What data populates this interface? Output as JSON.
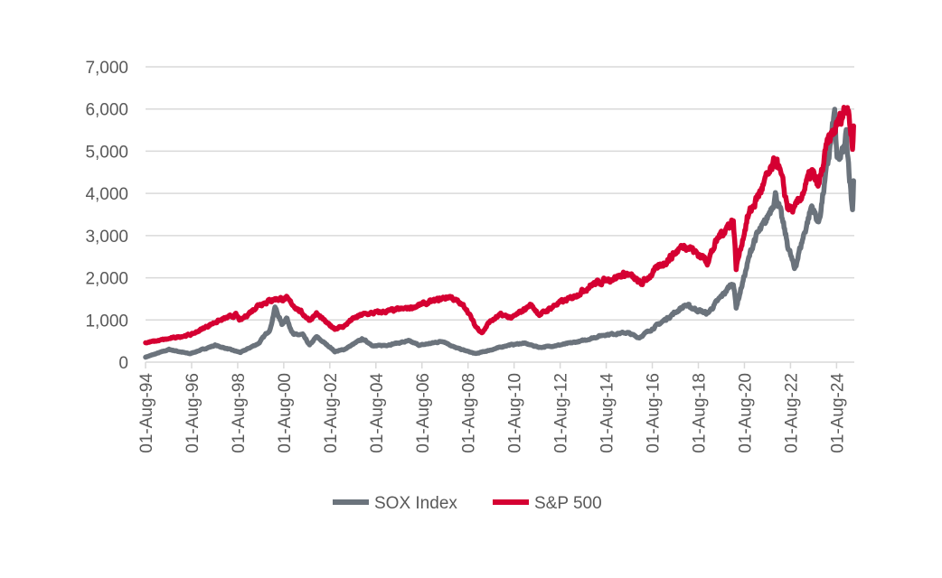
{
  "chart_data": {
    "type": "line",
    "title": "",
    "xlabel": "",
    "ylabel": "",
    "ylim": [
      0,
      7000
    ],
    "yticks": [
      0,
      1000,
      2000,
      3000,
      4000,
      5000,
      6000,
      7000
    ],
    "ytick_labels": [
      "0",
      "1,000",
      "2,000",
      "3,000",
      "4,000",
      "5,000",
      "6,000",
      "7,000"
    ],
    "xlim": [
      1994.58,
      2025.35
    ],
    "xticks": [
      1994.58,
      1996.58,
      1998.58,
      2000.58,
      2002.58,
      2004.58,
      2006.58,
      2008.58,
      2010.58,
      2012.58,
      2014.58,
      2016.58,
      2018.58,
      2020.58,
      2022.58,
      2024.58
    ],
    "xtick_labels": [
      "01-Aug-94",
      "01-Aug-96",
      "01-Aug-98",
      "01-Aug-00",
      "01-Aug-02",
      "01-Aug-04",
      "01-Aug-06",
      "01-Aug-08",
      "01-Aug-10",
      "01-Aug-12",
      "01-Aug-14",
      "01-Aug-16",
      "01-Aug-18",
      "01-Aug-20",
      "01-Aug-22",
      "01-Aug-24"
    ],
    "grid": true,
    "legend_position": "bottom",
    "series": [
      {
        "name": "SOX Index",
        "color": "#6b737c",
        "x": [
          1994.58,
          1995.6,
          1996.5,
          1997.6,
          1998.7,
          1999.5,
          2000.0,
          2000.2,
          2000.5,
          2000.7,
          2001.0,
          2001.4,
          2001.7,
          2002.0,
          2002.6,
          2002.8,
          2003.2,
          2004.0,
          2004.5,
          2005.0,
          2006.0,
          2006.5,
          2007.5,
          2008.0,
          2008.9,
          2009.5,
          2010.3,
          2011.0,
          2011.7,
          2012.5,
          2013.5,
          2014.5,
          2015.5,
          2016.0,
          2017.0,
          2018.0,
          2018.97,
          2019.5,
          2020.1,
          2020.22,
          2020.7,
          2021.0,
          2021.5,
          2021.95,
          2022.45,
          2022.75,
          2023.5,
          2023.8,
          2024.2,
          2024.5,
          2024.6,
          2024.9,
          2025.0,
          2025.27,
          2025.32
        ],
        "values": [
          120,
          300,
          200,
          400,
          230,
          450,
          800,
          1300,
          900,
          1050,
          650,
          650,
          400,
          600,
          350,
          250,
          300,
          550,
          380,
          400,
          500,
          400,
          500,
          350,
          200,
          280,
          400,
          450,
          350,
          400,
          500,
          650,
          700,
          580,
          950,
          1350,
          1150,
          1500,
          1900,
          1300,
          2300,
          2900,
          3300,
          4000,
          2800,
          2200,
          3700,
          3300,
          4700,
          5900,
          4700,
          5000,
          5400,
          3600,
          4300
        ]
      },
      {
        "name": "S&P 500",
        "color": "#d50032",
        "x": [
          1994.58,
          1995.5,
          1996.6,
          1997.6,
          1998.5,
          1998.7,
          1999.5,
          2000.2,
          2000.7,
          2001.3,
          2001.7,
          2002.0,
          2002.5,
          2002.8,
          2003.2,
          2003.5,
          2004.0,
          2005.0,
          2006.0,
          2007.0,
          2007.8,
          2008.5,
          2008.9,
          2009.2,
          2009.5,
          2010.0,
          2010.5,
          2011.3,
          2011.7,
          2012.5,
          2013.0,
          2014.0,
          2015.5,
          2016.1,
          2016.7,
          2018.0,
          2018.97,
          2019.5,
          2020.1,
          2020.22,
          2020.7,
          2021.0,
          2021.5,
          2022.0,
          2022.45,
          2022.75,
          2023.5,
          2023.8,
          2024.2,
          2024.5,
          2024.95,
          2025.1,
          2025.27,
          2025.32
        ],
        "values": [
          460,
          545,
          660,
          950,
          1120,
          980,
          1370,
          1500,
          1500,
          1200,
          1000,
          1150,
          900,
          800,
          850,
          1000,
          1130,
          1200,
          1280,
          1430,
          1560,
          1280,
          850,
          700,
          950,
          1120,
          1050,
          1360,
          1120,
          1400,
          1500,
          1850,
          2100,
          1850,
          2170,
          2800,
          2400,
          3000,
          3380,
          2240,
          3400,
          3750,
          4300,
          4790,
          3700,
          3580,
          4500,
          4150,
          5200,
          5500,
          6000,
          6140,
          5000,
          5600
        ]
      }
    ]
  }
}
